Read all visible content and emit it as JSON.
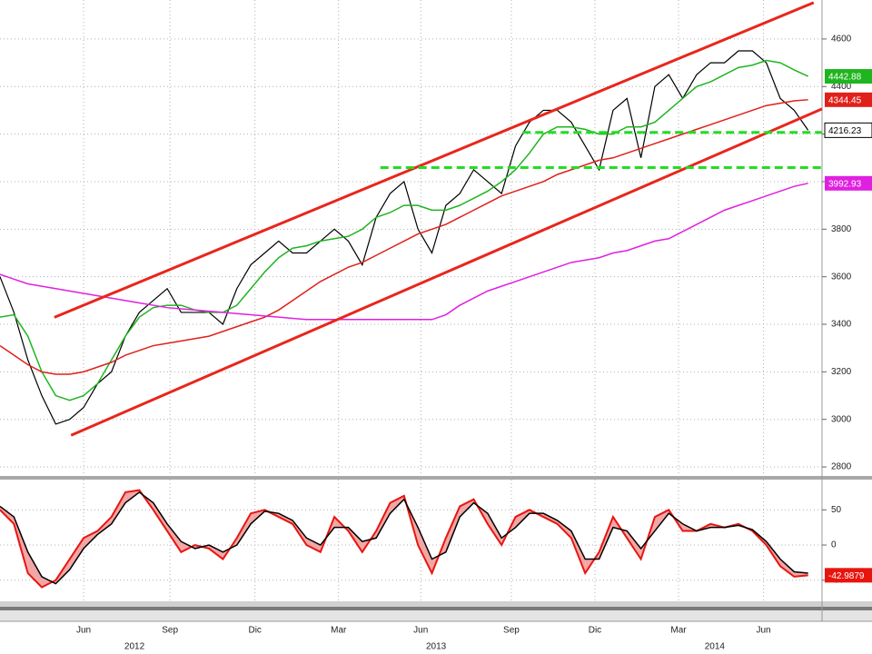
{
  "chart_data": [
    {
      "type": "line",
      "ylim": [
        2762,
        4764
      ],
      "yticks": [
        2800,
        3000,
        3200,
        3400,
        3600,
        3800,
        4000,
        4200,
        4400,
        4600
      ],
      "grid": true,
      "xlim": [
        0,
        59
      ],
      "series": [
        {
          "color": "#000000",
          "label": true,
          "values": [
            3600,
            3450,
            3250,
            3100,
            2980,
            3000,
            3050,
            3150,
            3200,
            3350,
            3450,
            3500,
            3550,
            3450,
            3450,
            3450,
            3400,
            3550,
            3650,
            3700,
            3750,
            3700,
            3700,
            3750,
            3800,
            3750,
            3650,
            3850,
            3950,
            4000,
            3800,
            3700,
            3900,
            3950,
            4050,
            4000,
            3950,
            4150,
            4250,
            4300,
            4300,
            4250,
            4150,
            4050,
            4300,
            4350,
            4100,
            4400,
            4450,
            4350,
            4450,
            4500,
            4500,
            4550,
            4550,
            4500,
            4350,
            4300,
            4216.23
          ]
        },
        {
          "color": "#1fb51f",
          "label": true,
          "values": [
            3430,
            3440,
            3350,
            3200,
            3100,
            3080,
            3100,
            3150,
            3250,
            3350,
            3430,
            3470,
            3480,
            3480,
            3460,
            3450,
            3450,
            3480,
            3550,
            3620,
            3680,
            3720,
            3730,
            3750,
            3760,
            3770,
            3800,
            3850,
            3870,
            3900,
            3900,
            3880,
            3880,
            3900,
            3930,
            3960,
            4000,
            4050,
            4120,
            4200,
            4230,
            4230,
            4220,
            4200,
            4200,
            4230,
            4230,
            4250,
            4300,
            4350,
            4400,
            4420,
            4450,
            4480,
            4490,
            4510,
            4500,
            4470,
            4442.88
          ]
        },
        {
          "color": "#e0201a",
          "label": true,
          "values": [
            3310,
            3270,
            3230,
            3200,
            3190,
            3190,
            3200,
            3220,
            3240,
            3270,
            3290,
            3310,
            3320,
            3330,
            3340,
            3350,
            3370,
            3390,
            3410,
            3430,
            3460,
            3500,
            3540,
            3580,
            3610,
            3640,
            3660,
            3690,
            3720,
            3750,
            3780,
            3800,
            3820,
            3850,
            3880,
            3910,
            3940,
            3960,
            3980,
            4000,
            4030,
            4050,
            4070,
            4090,
            4100,
            4120,
            4140,
            4160,
            4180,
            4200,
            4220,
            4240,
            4260,
            4280,
            4300,
            4320,
            4330,
            4340,
            4344.45
          ]
        },
        {
          "color": "#e020e0",
          "label": true,
          "values": [
            3610,
            3590,
            3570,
            3560,
            3550,
            3540,
            3530,
            3520,
            3510,
            3500,
            3490,
            3480,
            3470,
            3465,
            3460,
            3455,
            3450,
            3445,
            3440,
            3435,
            3430,
            3425,
            3420,
            3420,
            3420,
            3420,
            3420,
            3420,
            3420,
            3420,
            3420,
            3420,
            3440,
            3480,
            3510,
            3540,
            3560,
            3580,
            3600,
            3620,
            3640,
            3660,
            3670,
            3680,
            3700,
            3710,
            3730,
            3750,
            3760,
            3790,
            3820,
            3850,
            3880,
            3900,
            3920,
            3940,
            3960,
            3980,
            3992.93
          ]
        }
      ],
      "lines": [
        {
          "x": [
            3.9,
            58.4
          ],
          "values": [
            3429,
            4753
          ],
          "color": "#e8261c"
        },
        {
          "x": [
            5.1,
            59
          ],
          "values": [
            2933,
            4306
          ],
          "color": "#e8261c"
        },
        {
          "x": [
            37.5,
            59
          ],
          "values": [
            4207,
            4207
          ],
          "color": "#22dd22",
          "dashed": true
        },
        {
          "x": [
            27.3,
            59
          ],
          "values": [
            4059,
            4059
          ],
          "color": "#22dd22",
          "dashed": true
        }
      ]
    },
    {
      "type": "line",
      "ylim": [
        -80,
        93
      ],
      "yticks": [
        50,
        0,
        -50
      ],
      "grid": true,
      "xlim": [
        0,
        59
      ],
      "xticks": [
        {
          "value": 6,
          "label": "Jun"
        },
        {
          "value": 12.2,
          "label": "Sep"
        },
        {
          "value": 18.3,
          "label": "Dic"
        },
        {
          "value": 24.3,
          "label": "Mar"
        },
        {
          "value": 30.2,
          "label": "Jun"
        },
        {
          "value": 36.7,
          "label": "Sep"
        },
        {
          "value": 42.7,
          "label": "Dic"
        },
        {
          "value": 48.7,
          "label": "Mar"
        },
        {
          "value": 54.8,
          "label": "Jun"
        }
      ],
      "year_ticks": [
        {
          "value": 9.65,
          "label": "2012"
        },
        {
          "value": 31.3,
          "label": "2013"
        },
        {
          "value": 51.3,
          "label": "2014"
        }
      ],
      "fill": "#f2a6a6",
      "series": [
        {
          "color": "#e8150f",
          "label": true,
          "values": [
            50,
            30,
            -40,
            -60,
            -50,
            -20,
            10,
            20,
            40,
            75,
            78,
            50,
            20,
            -10,
            0,
            -5,
            -20,
            10,
            45,
            50,
            40,
            30,
            0,
            -10,
            40,
            20,
            -10,
            20,
            60,
            70,
            0,
            -40,
            10,
            55,
            65,
            30,
            0,
            40,
            50,
            40,
            30,
            10,
            -40,
            -10,
            40,
            10,
            -20,
            40,
            50,
            20,
            20,
            30,
            25,
            30,
            20,
            0,
            -30,
            -45,
            -42.9879
          ]
        },
        {
          "color": "#000000",
          "label": false,
          "values": [
            55,
            40,
            -10,
            -45,
            -55,
            -35,
            -5,
            15,
            30,
            60,
            75,
            60,
            30,
            5,
            -5,
            0,
            -10,
            0,
            30,
            48,
            45,
            35,
            10,
            0,
            25,
            25,
            5,
            10,
            45,
            65,
            25,
            -20,
            -10,
            40,
            60,
            45,
            10,
            25,
            45,
            45,
            35,
            20,
            -20,
            -20,
            25,
            20,
            -5,
            20,
            45,
            30,
            20,
            25,
            25,
            28,
            22,
            5,
            -20,
            -38,
            -40
          ]
        }
      ]
    }
  ]
}
